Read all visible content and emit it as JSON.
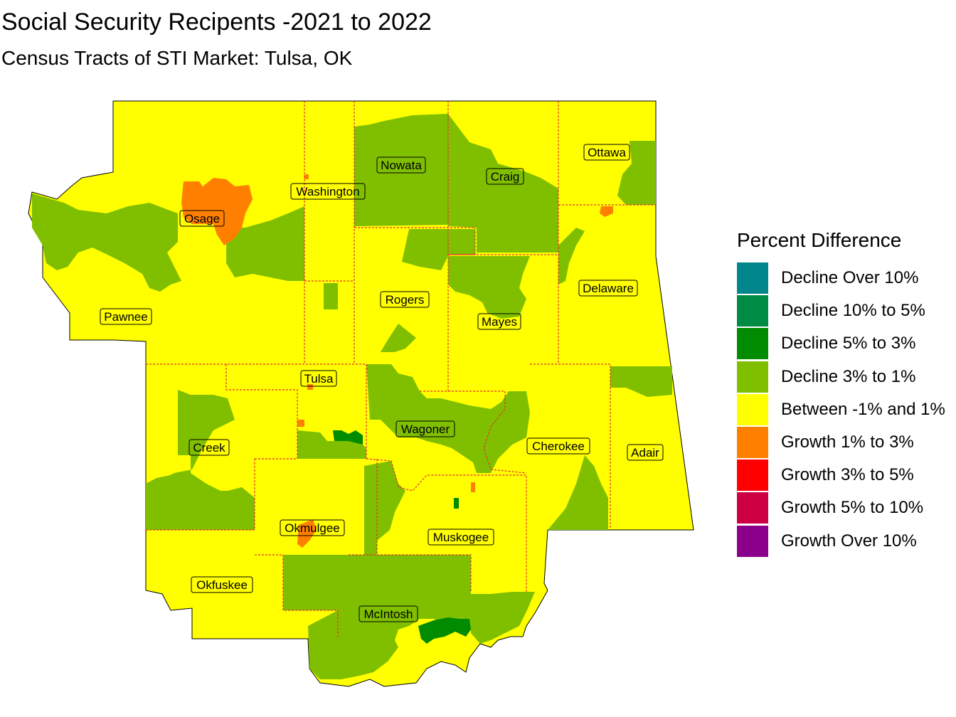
{
  "title": "Social Security Recipents -2021 to 2022",
  "subtitle": "Census Tracts of STI Market: Tulsa, OK",
  "legend": {
    "title": "Percent Difference",
    "items": [
      {
        "label": "Decline Over 10%",
        "color": "#00868B"
      },
      {
        "label": "Decline 10% to 5%",
        "color": "#008B45"
      },
      {
        "label": "Decline 5% to 3%",
        "color": "#008B00"
      },
      {
        "label": "Decline 3% to 1%",
        "color": "#7FBF00"
      },
      {
        "label": "Between -1% and 1%",
        "color": "#FFFF00"
      },
      {
        "label": "Growth 1% to 3%",
        "color": "#FF8000"
      },
      {
        "label": "Growth 3% to 5%",
        "color": "#FF0000"
      },
      {
        "label": "Growth 5% to 10%",
        "color": "#CD0044"
      },
      {
        "label": "Growth Over 10%",
        "color": "#8B008B"
      }
    ]
  },
  "counties": {
    "osage": "Osage",
    "washington": "Washington",
    "nowata": "Nowata",
    "craig": "Craig",
    "ottawa": "Ottawa",
    "pawnee": "Pawnee",
    "rogers": "Rogers",
    "mayes": "Mayes",
    "delaware": "Delaware",
    "tulsa": "Tulsa",
    "wagoner": "Wagoner",
    "creek": "Creek",
    "cherokee": "Cherokee",
    "adair": "Adair",
    "okmulgee": "Okmulgee",
    "muskogee": "Muskogee",
    "okfuskee": "Okfuskee",
    "mcintosh": "McIntosh"
  },
  "colors": {
    "boundary": "#E8303A",
    "outline": "#000000"
  }
}
